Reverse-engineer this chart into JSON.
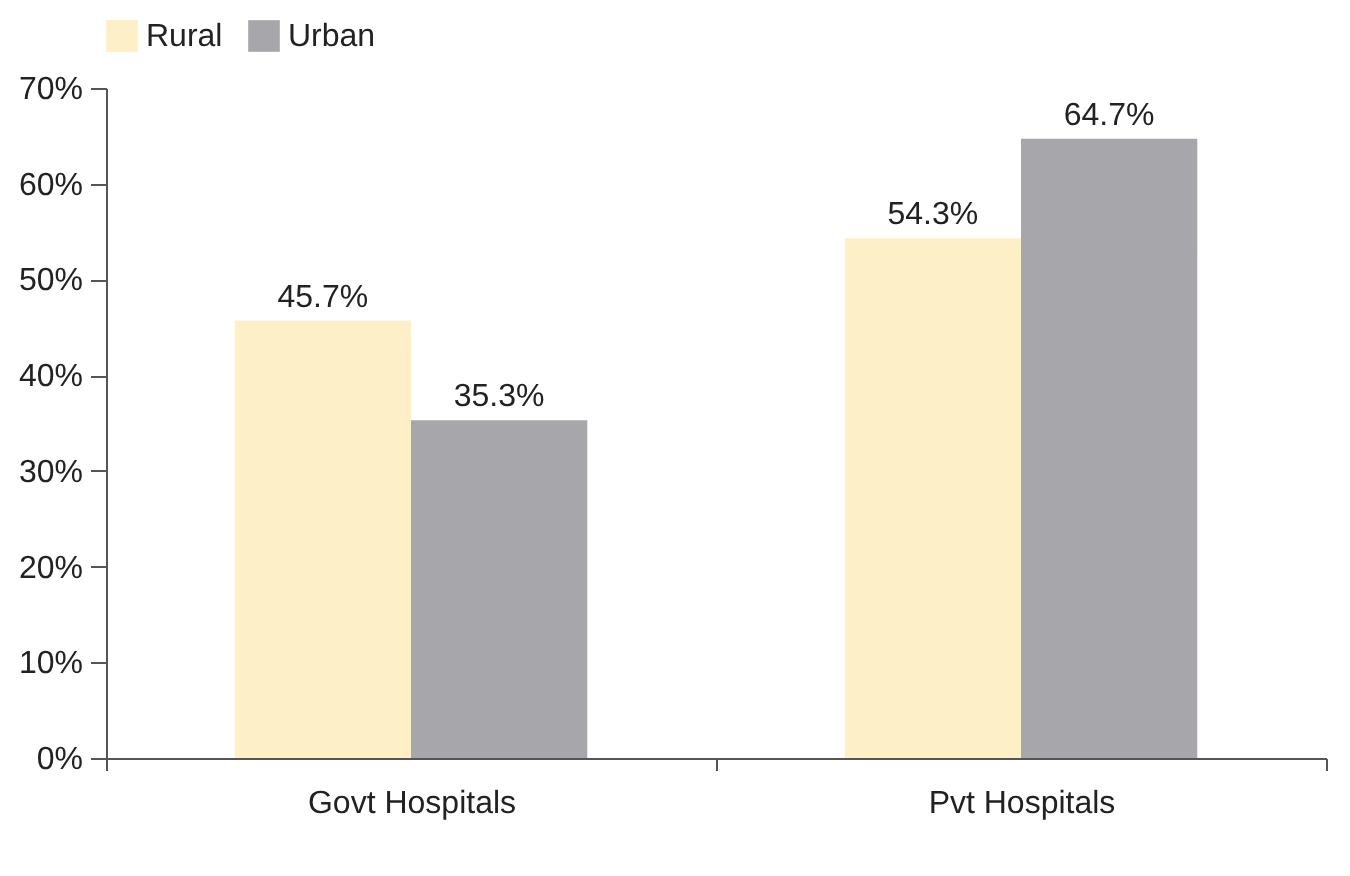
{
  "chart_data": {
    "type": "bar",
    "categories": [
      "Govt Hospitals",
      "Pvt Hospitals"
    ],
    "series": [
      {
        "name": "Rural",
        "color": "#fdf0c6",
        "values": [
          45.7,
          54.3
        ],
        "value_labels": [
          "45.7%",
          "54.3%"
        ]
      },
      {
        "name": "Urban",
        "color": "#a7a7ab",
        "values": [
          35.3,
          64.7
        ],
        "value_labels": [
          "35.3%",
          "64.7%"
        ]
      }
    ],
    "ylim": [
      0,
      70
    ],
    "yticks": [
      {
        "value": 0,
        "label": "0%"
      },
      {
        "value": 10,
        "label": "10%"
      },
      {
        "value": 20,
        "label": "20%"
      },
      {
        "value": 30,
        "label": "30%"
      },
      {
        "value": 40,
        "label": "40%"
      },
      {
        "value": 50,
        "label": "50%"
      },
      {
        "value": 60,
        "label": "60%"
      },
      {
        "value": 70,
        "label": "70%"
      }
    ],
    "grid": false,
    "legend": "top"
  }
}
